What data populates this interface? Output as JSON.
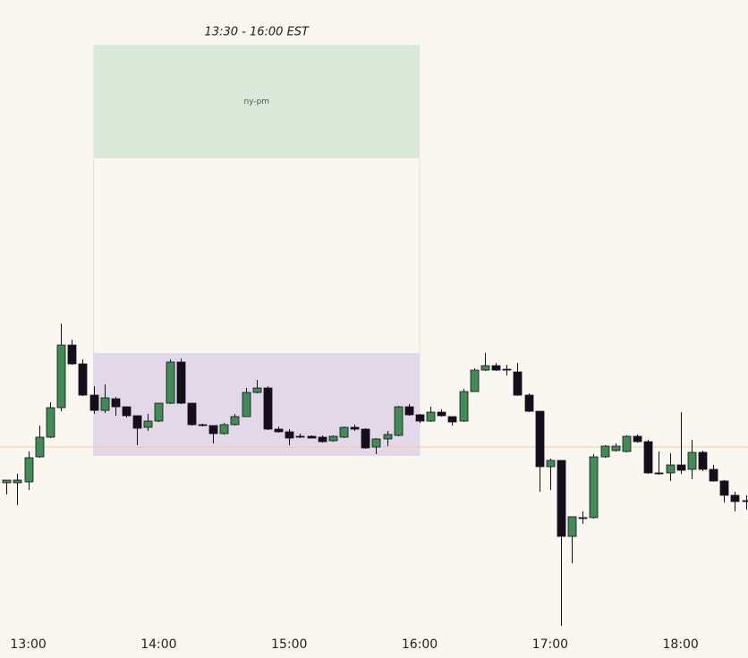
{
  "chart_data": {
    "type": "candlestick",
    "x": [
      "12:50",
      "12:55",
      "13:00",
      "13:05",
      "13:10",
      "13:15",
      "13:20",
      "13:25",
      "13:30",
      "13:35",
      "13:40",
      "13:45",
      "13:50",
      "13:55",
      "14:00",
      "14:05",
      "14:10",
      "14:15",
      "14:20",
      "14:25",
      "14:30",
      "14:35",
      "14:40",
      "14:45",
      "14:50",
      "14:55",
      "15:00",
      "15:05",
      "15:10",
      "15:15",
      "15:20",
      "15:25",
      "15:30",
      "15:35",
      "15:40",
      "15:45",
      "15:50",
      "15:55",
      "16:00",
      "16:05",
      "16:10",
      "16:15",
      "16:20",
      "16:25",
      "16:30",
      "16:35",
      "16:40",
      "16:45",
      "16:50",
      "16:55",
      "17:00",
      "17:05",
      "17:10",
      "17:15",
      "17:20",
      "17:25",
      "17:30",
      "17:35",
      "17:40",
      "17:45",
      "17:50",
      "17:55",
      "18:00",
      "18:05",
      "18:10",
      "18:15",
      "18:20",
      "18:25",
      "18:30"
    ],
    "open": [
      160,
      160,
      161,
      189,
      211,
      244,
      314,
      293,
      258,
      241,
      254,
      245,
      235,
      222,
      229,
      249,
      295,
      249,
      225,
      224,
      215,
      225,
      234,
      261,
      266,
      220,
      217,
      212,
      212,
      211,
      207,
      211,
      222,
      220,
      200,
      209,
      213,
      245,
      236,
      229,
      239,
      234,
      229,
      262,
      286,
      291,
      287,
      284,
      258,
      240,
      178,
      185,
      100,
      121,
      121,
      189,
      196,
      195,
      212,
      206,
      171,
      171,
      180,
      175,
      194,
      175,
      162,
      146,
      140
    ],
    "high": [
      163,
      170,
      195,
      224,
      250,
      338,
      320,
      298,
      268,
      270,
      256,
      245,
      235,
      237,
      249,
      298,
      299,
      249,
      226,
      224,
      227,
      237,
      266,
      275,
      268,
      223,
      220,
      215,
      213,
      213,
      213,
      223,
      225,
      221,
      210,
      218,
      246,
      248,
      237,
      245,
      242,
      234,
      265,
      288,
      305,
      294,
      292,
      294,
      260,
      240,
      187,
      185,
      122,
      128,
      192,
      202,
      204,
      213,
      214,
      208,
      195,
      193,
      239,
      208,
      196,
      180,
      163,
      150,
      146
    ],
    "low": [
      147,
      135,
      152,
      188,
      210,
      240,
      292,
      257,
      237,
      238,
      235,
      233,
      202,
      218,
      228,
      248,
      248,
      224,
      223,
      204,
      214,
      224,
      234,
      260,
      219,
      216,
      202,
      210,
      210,
      205,
      206,
      210,
      218,
      198,
      192,
      201,
      212,
      235,
      227,
      228,
      234,
      224,
      228,
      262,
      285,
      285,
      280,
      257,
      239,
      150,
      152,
      0,
      70,
      114,
      120,
      188,
      195,
      194,
      205,
      170,
      169,
      162,
      170,
      164,
      173,
      161,
      138,
      128,
      130
    ],
    "close": [
      163,
      163,
      188,
      211,
      244,
      314,
      293,
      258,
      241,
      255,
      245,
      235,
      221,
      229,
      249,
      295,
      249,
      225,
      224,
      215,
      225,
      234,
      261,
      266,
      220,
      217,
      210,
      211,
      210,
      206,
      212,
      222,
      220,
      199,
      209,
      214,
      245,
      236,
      229,
      239,
      235,
      228,
      262,
      286,
      291,
      286,
      286,
      258,
      240,
      178,
      185,
      100,
      122,
      120,
      189,
      201,
      201,
      212,
      206,
      171,
      170,
      180,
      174,
      194,
      175,
      162,
      146,
      139,
      139
    ],
    "up_color": "#3f8d55",
    "down_color": "#140d1c",
    "xlim": [
      "12:47",
      "18:31"
    ],
    "xticks": [
      "13:00",
      "14:00",
      "15:00",
      "16:00",
      "17:00",
      "18:00"
    ],
    "ylim": [
      0,
      700
    ],
    "level": {
      "value": 200,
      "color": "#f4c9a0"
    },
    "session": {
      "label": "13:30 - 16:00 EST",
      "name": "ny-pm",
      "start": "13:30",
      "end": "16:00",
      "zone": [
        523,
        650
      ],
      "zone_color": "#d9e8d8",
      "range": [
        190,
        305
      ],
      "range_color": "#e3d8e8"
    }
  }
}
